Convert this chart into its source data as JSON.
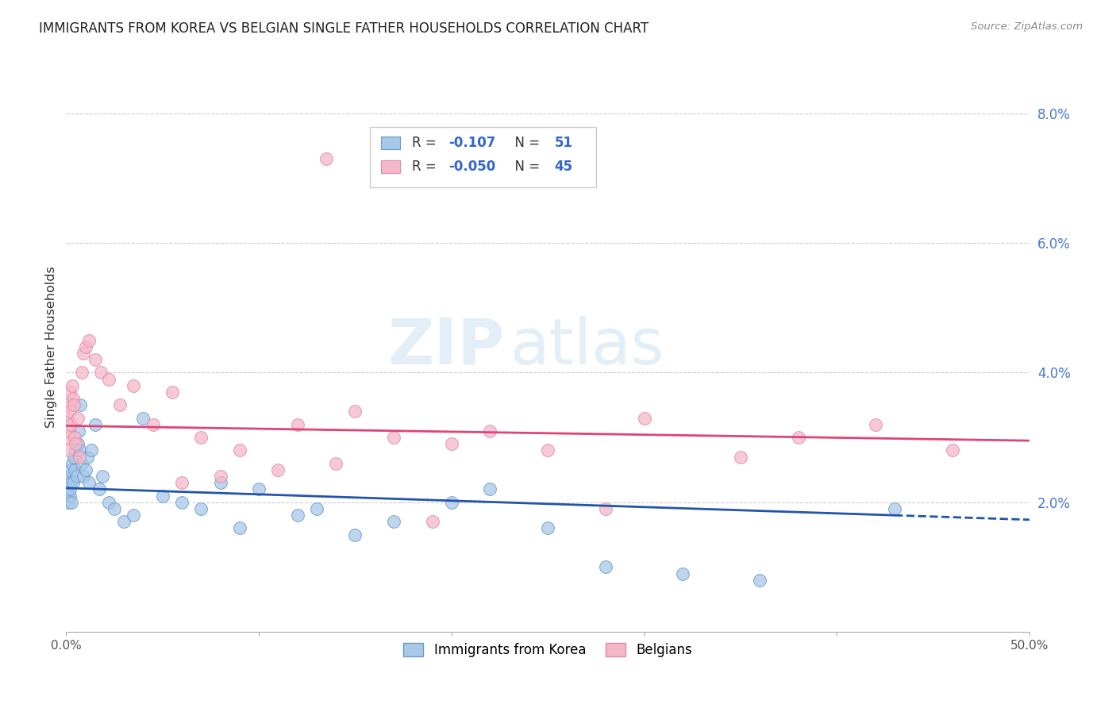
{
  "title": "IMMIGRANTS FROM KOREA VS BELGIAN SINGLE FATHER HOUSEHOLDS CORRELATION CHART",
  "source": "Source: ZipAtlas.com",
  "ylabel": "Single Father Households",
  "yticks": [
    0.0,
    2.0,
    4.0,
    6.0,
    8.0
  ],
  "ytick_labels": [
    "",
    "2.0%",
    "4.0%",
    "6.0%",
    "8.0%"
  ],
  "xlim": [
    0.0,
    50.0
  ],
  "ylim": [
    0.0,
    8.8
  ],
  "watermark_zip": "ZIP",
  "watermark_atlas": "atlas",
  "legend_korea_r": "-0.107",
  "legend_korea_n": "51",
  "legend_belgian_r": "-0.050",
  "legend_belgian_n": "45",
  "korea_color": "#a8c8e8",
  "korean_line_color": "#2255aa",
  "korean_edge_color": "#6699cc",
  "belgian_color": "#f5b8c8",
  "belgian_line_color": "#dd4477",
  "belgian_edge_color": "#dd88aa",
  "korea_points_x": [
    0.05,
    0.08,
    0.1,
    0.12,
    0.15,
    0.18,
    0.2,
    0.22,
    0.25,
    0.28,
    0.3,
    0.35,
    0.4,
    0.45,
    0.5,
    0.55,
    0.6,
    0.65,
    0.7,
    0.75,
    0.8,
    0.9,
    1.0,
    1.1,
    1.2,
    1.3,
    1.5,
    1.7,
    1.9,
    2.2,
    2.5,
    3.0,
    3.5,
    4.0,
    5.0,
    6.0,
    7.0,
    8.0,
    9.0,
    10.0,
    12.0,
    13.0,
    15.0,
    17.0,
    20.0,
    22.0,
    25.0,
    28.0,
    32.0,
    36.0,
    43.0
  ],
  "korea_points_y": [
    2.2,
    2.1,
    2.3,
    2.0,
    2.4,
    2.1,
    2.2,
    2.5,
    2.3,
    2.0,
    2.6,
    2.3,
    2.7,
    2.5,
    2.8,
    2.4,
    2.9,
    3.1,
    2.8,
    3.5,
    2.6,
    2.4,
    2.5,
    2.7,
    2.3,
    2.8,
    3.2,
    2.2,
    2.4,
    2.0,
    1.9,
    1.7,
    1.8,
    3.3,
    2.1,
    2.0,
    1.9,
    2.3,
    1.6,
    2.2,
    1.8,
    1.9,
    1.5,
    1.7,
    2.0,
    2.2,
    1.6,
    1.0,
    0.9,
    0.8,
    1.9
  ],
  "belgian_points_x": [
    0.05,
    0.08,
    0.1,
    0.12,
    0.15,
    0.18,
    0.2,
    0.25,
    0.3,
    0.35,
    0.4,
    0.45,
    0.5,
    0.6,
    0.7,
    0.8,
    0.9,
    1.0,
    1.2,
    1.5,
    1.8,
    2.2,
    2.8,
    3.5,
    4.5,
    5.5,
    7.0,
    9.0,
    12.0,
    15.0,
    17.0,
    20.0,
    22.0,
    25.0,
    28.0,
    30.0,
    35.0,
    38.0,
    42.0,
    46.0,
    14.0,
    11.0,
    8.0,
    6.0,
    19.0
  ],
  "belgian_points_y": [
    3.3,
    3.0,
    3.5,
    2.8,
    3.1,
    3.7,
    3.4,
    3.2,
    3.8,
    3.6,
    3.5,
    3.0,
    2.9,
    3.3,
    2.7,
    4.0,
    4.3,
    4.4,
    4.5,
    4.2,
    4.0,
    3.9,
    3.5,
    3.8,
    3.2,
    3.7,
    3.0,
    2.8,
    3.2,
    3.4,
    3.0,
    2.9,
    3.1,
    2.8,
    1.9,
    3.3,
    2.7,
    3.0,
    3.2,
    2.8,
    2.6,
    2.5,
    2.4,
    2.3,
    1.7
  ],
  "belgian_outlier_x": 13.5,
  "belgian_outlier_y": 7.3,
  "trendline_blue_y_start": 2.22,
  "trendline_blue_y_end": 1.73,
  "trendline_blue_solid_end_x": 43.0,
  "trendline_pink_y_start": 3.18,
  "trendline_pink_y_end": 2.95,
  "background_color": "#ffffff",
  "grid_color": "#cccccc"
}
